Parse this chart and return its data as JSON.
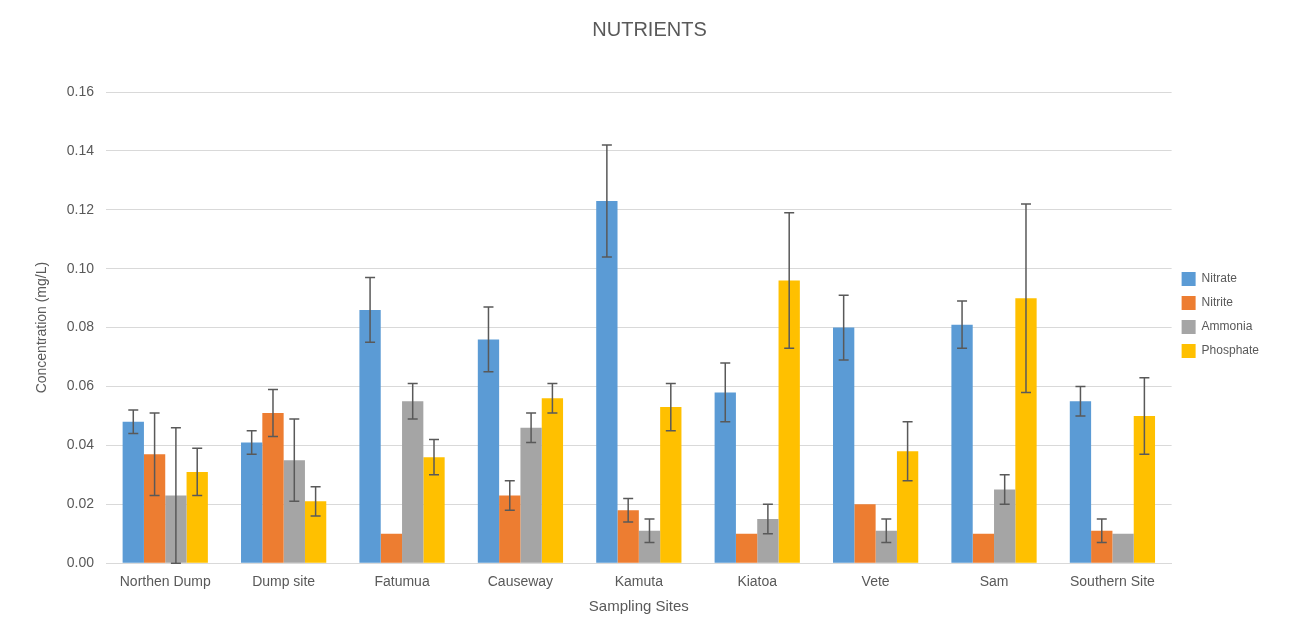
{
  "chart_data": {
    "type": "bar",
    "title": "NUTRIENTS",
    "xlabel": "Sampling Sites",
    "ylabel": "Concentration (mg/L)",
    "categories": [
      "Northen Dump",
      "Dump site",
      "Fatumua",
      "Causeway",
      "Kamuta",
      "Kiatoa",
      "Vete",
      "Sam",
      "Southern Site"
    ],
    "series": [
      {
        "name": "Nitrate",
        "color": "#5b9bd5",
        "values": [
          0.048,
          0.041,
          0.086,
          0.076,
          0.123,
          0.058,
          0.08,
          0.081,
          0.055
        ],
        "errors": [
          0.004,
          0.004,
          0.011,
          0.011,
          0.019,
          0.01,
          0.011,
          0.008,
          0.005
        ]
      },
      {
        "name": "Nitrite",
        "color": "#ed7d31",
        "values": [
          0.037,
          0.051,
          0.01,
          0.023,
          0.018,
          0.01,
          0.02,
          0.01,
          0.011
        ],
        "errors": [
          0.014,
          0.008,
          null,
          0.005,
          0.004,
          null,
          null,
          null,
          0.004
        ]
      },
      {
        "name": "Ammonia",
        "color": "#a5a5a5",
        "values": [
          0.023,
          0.035,
          0.055,
          0.046,
          0.011,
          0.015,
          0.011,
          0.025,
          0.01
        ],
        "errors": [
          0.023,
          0.014,
          0.006,
          0.005,
          0.004,
          0.005,
          0.004,
          0.005,
          null
        ]
      },
      {
        "name": "Phosphate",
        "color": "#ffc000",
        "values": [
          0.031,
          0.021,
          0.036,
          0.056,
          0.053,
          0.096,
          0.038,
          0.09,
          0.05
        ],
        "errors": [
          0.008,
          0.005,
          0.006,
          0.005,
          0.008,
          0.023,
          0.01,
          0.032,
          0.013
        ]
      }
    ],
    "ylim": [
      0,
      0.16
    ],
    "yticks": [
      {
        "value": 0,
        "label": "0.00"
      },
      {
        "value": 0.02,
        "label": "0.02"
      },
      {
        "value": 0.04,
        "label": "0.04"
      },
      {
        "value": 0.06,
        "label": "0.06"
      },
      {
        "value": 0.08,
        "label": "0.08"
      },
      {
        "value": 0.1,
        "label": "0.10"
      },
      {
        "value": 0.12,
        "label": "0.12"
      },
      {
        "value": 0.14,
        "label": "0.14"
      },
      {
        "value": 0.16,
        "label": "0.16"
      }
    ],
    "grid": "y",
    "legend": "right"
  }
}
